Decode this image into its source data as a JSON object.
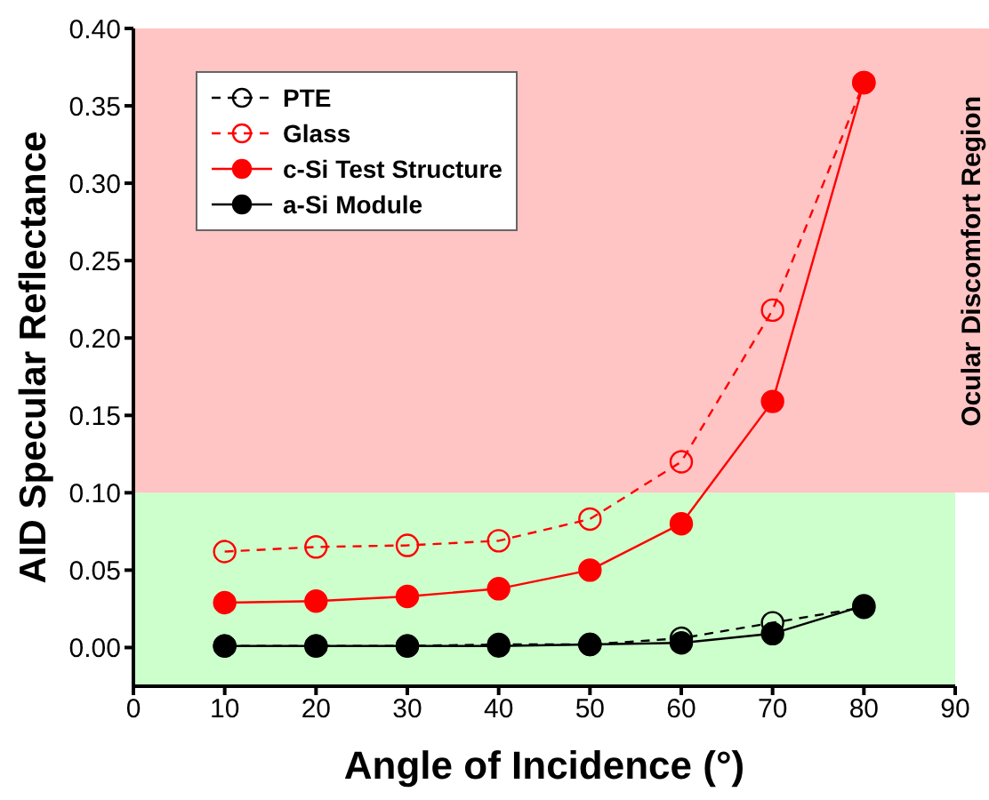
{
  "chart_data": {
    "type": "line",
    "xlabel": "Angle of Incidence (°)",
    "ylabel": "AID Specular Reflectance",
    "x": [
      10,
      20,
      30,
      40,
      50,
      60,
      70,
      80
    ],
    "series": [
      {
        "name": "PTE",
        "color": "#000000",
        "line_style": "dashed",
        "values": [
          0.001,
          0.001,
          0.001,
          0.002,
          0.002,
          0.006,
          0.016,
          0.026
        ]
      },
      {
        "name": "Glass",
        "color": "#ff0000",
        "line_style": "dashed",
        "values": [
          0.062,
          0.065,
          0.066,
          0.069,
          0.083,
          0.12,
          0.218,
          0.365
        ]
      },
      {
        "name": "c-Si Test Structure",
        "color": "#ff0000",
        "line_style": "solid",
        "values": [
          0.029,
          0.03,
          0.033,
          0.038,
          0.05,
          0.08,
          0.159,
          0.365
        ]
      },
      {
        "name": "a-Si Module",
        "color": "#000000",
        "line_style": "solid",
        "values": [
          0.001,
          0.001,
          0.001,
          0.001,
          0.002,
          0.003,
          0.009,
          0.027
        ]
      }
    ],
    "xlim": [
      0,
      90
    ],
    "xticks": [
      0,
      10,
      20,
      30,
      40,
      50,
      60,
      70,
      80,
      90
    ],
    "ylim": [
      -0.025,
      0.4
    ],
    "yticks": [
      {
        "value": 0,
        "label": "0.00"
      },
      0.05,
      {
        "value": 0.1,
        "label": "0.10"
      },
      0.15,
      {
        "value": 0.2,
        "label": "0.20"
      },
      0.25,
      {
        "value": 0.3,
        "label": "0.30"
      },
      0.35,
      {
        "value": 0.4,
        "label": "0.40"
      }
    ],
    "bands": [
      {
        "axis": "y",
        "from": -0.025,
        "to": 0.1,
        "color": "#ccffcc"
      },
      {
        "axis": "y",
        "from": 0.1,
        "to": 0.4,
        "color": "#ffc4c4",
        "label": "Ocular Discomfort Region"
      }
    ],
    "marker": "circle",
    "grid": false,
    "legend": "top left"
  }
}
